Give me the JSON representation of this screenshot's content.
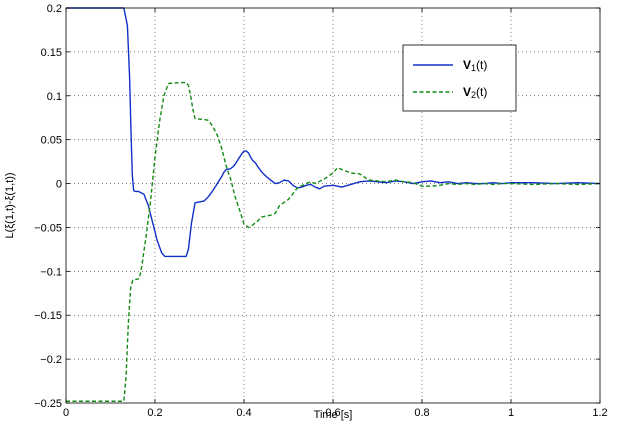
{
  "chart_data": {
    "type": "line",
    "title": "",
    "xlabel": "Time [s]",
    "ylabel": "L(ξ(1,t)-ξ(1,t))",
    "xlim": [
      0,
      1.2
    ],
    "ylim": [
      -0.25,
      0.2
    ],
    "xticks": [
      0,
      0.2,
      0.4,
      0.6,
      0.8,
      1,
      1.2
    ],
    "xtick_labels": [
      "0",
      "0.2",
      "0.4",
      "0.6",
      "0.8",
      "1",
      "1.2"
    ],
    "yticks": [
      0.2,
      0.15,
      0.1,
      0.05,
      0,
      -0.05,
      -0.1,
      -0.15,
      -0.2,
      -0.25
    ],
    "ytick_labels": [
      "0.2",
      "0.15",
      "0.1",
      "0.05",
      "0",
      "−0.05",
      "−0.1",
      "−0.15",
      "−0.2",
      "−0.25"
    ],
    "grid": true,
    "legend_position": "top-right",
    "series": [
      {
        "name": "V1(t)",
        "legend_main": "V",
        "legend_sub": "1",
        "legend_tail": "(t)",
        "color": "#1030c8",
        "style": "solid",
        "x": [
          0,
          0.13,
          0.138,
          0.143,
          0.146,
          0.149,
          0.152,
          0.156,
          0.163,
          0.175,
          0.185,
          0.195,
          0.205,
          0.215,
          0.222,
          0.24,
          0.26,
          0.27,
          0.275,
          0.282,
          0.29,
          0.3,
          0.31,
          0.32,
          0.33,
          0.34,
          0.35,
          0.355,
          0.36,
          0.37,
          0.375,
          0.38,
          0.385,
          0.39,
          0.395,
          0.4,
          0.405,
          0.41,
          0.415,
          0.42,
          0.425,
          0.43,
          0.44,
          0.45,
          0.46,
          0.47,
          0.48,
          0.49,
          0.5,
          0.51,
          0.52,
          0.53,
          0.54,
          0.55,
          0.56,
          0.57,
          0.58,
          0.6,
          0.62,
          0.64,
          0.66,
          0.68,
          0.7,
          0.72,
          0.74,
          0.76,
          0.78,
          0.8,
          0.82,
          0.84,
          0.86,
          0.88,
          0.9,
          0.92,
          0.94,
          0.96,
          0.98,
          1.0,
          1.05,
          1.1,
          1.15,
          1.2
        ],
        "y": [
          0.2,
          0.2,
          0.18,
          0.12,
          0.06,
          0.01,
          -0.008,
          -0.009,
          -0.009,
          -0.012,
          -0.025,
          -0.045,
          -0.065,
          -0.079,
          -0.083,
          -0.083,
          -0.083,
          -0.083,
          -0.075,
          -0.045,
          -0.022,
          -0.021,
          -0.02,
          -0.015,
          -0.008,
          0.0,
          0.008,
          0.013,
          0.016,
          0.017,
          0.019,
          0.022,
          0.026,
          0.03,
          0.034,
          0.037,
          0.037,
          0.035,
          0.03,
          0.026,
          0.024,
          0.02,
          0.013,
          0.008,
          0.004,
          0.0,
          0.001,
          0.004,
          0.003,
          -0.002,
          -0.005,
          -0.004,
          -0.002,
          -0.001,
          -0.004,
          -0.006,
          -0.003,
          -0.002,
          -0.004,
          -0.001,
          0.002,
          0.003,
          0.002,
          0.001,
          0.003,
          0.002,
          0.0,
          0.002,
          0.003,
          0.001,
          0.002,
          0.0,
          0.001,
          0.0,
          0.0,
          0.001,
          0.0,
          0.001,
          0.001,
          0.0,
          0.001,
          0.0
        ]
      },
      {
        "name": "V2(t)",
        "legend_main": "V",
        "legend_sub": "2",
        "legend_tail": "(t)",
        "color": "#128a12",
        "style": "dashed",
        "x": [
          0,
          0.13,
          0.135,
          0.14,
          0.145,
          0.15,
          0.16,
          0.165,
          0.17,
          0.18,
          0.19,
          0.2,
          0.21,
          0.22,
          0.23,
          0.26,
          0.27,
          0.275,
          0.28,
          0.285,
          0.29,
          0.31,
          0.32,
          0.33,
          0.34,
          0.35,
          0.36,
          0.37,
          0.38,
          0.39,
          0.4,
          0.41,
          0.42,
          0.43,
          0.44,
          0.45,
          0.46,
          0.47,
          0.48,
          0.5,
          0.52,
          0.54,
          0.55,
          0.56,
          0.58,
          0.6,
          0.61,
          0.62,
          0.64,
          0.66,
          0.68,
          0.7,
          0.72,
          0.74,
          0.76,
          0.78,
          0.8,
          0.82,
          0.84,
          0.86,
          0.88,
          0.9,
          0.92,
          0.94,
          0.96,
          0.98,
          1.0,
          1.05,
          1.1,
          1.15,
          1.2
        ],
        "y": [
          -0.248,
          -0.248,
          -0.22,
          -0.16,
          -0.12,
          -0.11,
          -0.109,
          -0.108,
          -0.095,
          -0.06,
          -0.02,
          0.03,
          0.07,
          0.1,
          0.114,
          0.115,
          0.115,
          0.112,
          0.1,
          0.085,
          0.074,
          0.073,
          0.072,
          0.065,
          0.055,
          0.04,
          0.02,
          0.005,
          -0.015,
          -0.03,
          -0.046,
          -0.05,
          -0.047,
          -0.043,
          -0.038,
          -0.037,
          -0.036,
          -0.034,
          -0.025,
          -0.018,
          -0.005,
          0.0,
          0.002,
          0.0,
          0.005,
          0.012,
          0.018,
          0.016,
          0.012,
          0.011,
          0.004,
          0.003,
          0.002,
          0.004,
          0.002,
          0.001,
          -0.003,
          -0.003,
          -0.002,
          0.0,
          -0.001,
          0.0,
          -0.001,
          0.0,
          -0.001,
          0.0,
          0.0,
          -0.001,
          0.0,
          -0.001,
          0.0
        ]
      }
    ]
  }
}
